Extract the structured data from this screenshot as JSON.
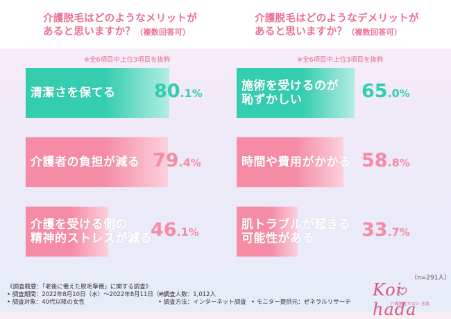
{
  "header": {
    "left_title_line1": "介護脱毛はどのようなメリットが",
    "left_title_line2": "あると思いますか？",
    "left_title_suffix": "（複数回答可）",
    "right_title_line1": "介護脱毛はどのようなデメリットが",
    "right_title_line2": "あると思いますか？",
    "right_title_suffix": "（複数回答可）"
  },
  "notes": {
    "left": "※全6項目中上位3項目を抜粋",
    "right": "※全6項目中上位3項目を抜粋"
  },
  "colors": {
    "merit": "#34cdb0",
    "merit_fade": "#b4ede2",
    "demerit": "#f58ba5",
    "demerit_fade": "#fbd1dc",
    "title": "#ea6f8f"
  },
  "chart_data": [
    {
      "type": "bar",
      "orientation": "horizontal",
      "title": "介護脱毛はどのようなメリットがあると思いますか？（複数回答可）",
      "categories": [
        "清潔さを保てる",
        "介護者の負担が減る",
        "介護を受ける側の精神的ストレスが減る"
      ],
      "values": [
        80.1,
        79.4,
        46.1
      ],
      "unit": "%",
      "series_colors": [
        "#34cdb0",
        "#f58ba5",
        "#f58ba5"
      ],
      "xlim": [
        0,
        100
      ]
    },
    {
      "type": "bar",
      "orientation": "horizontal",
      "title": "介護脱毛はどのようなデメリットがあると思いますか？（複数回答可）",
      "categories": [
        "施術を受けるのが恥ずかしい",
        "時間や費用がかかる",
        "肌トラブルが起きる可能性がある"
      ],
      "values": [
        65.0,
        58.8,
        33.7
      ],
      "unit": "%",
      "series_colors": [
        "#34cdb0",
        "#f58ba5",
        "#f58ba5"
      ],
      "xlim": [
        0,
        100
      ]
    }
  ],
  "bars": {
    "left": [
      {
        "label_lines": [
          "清潔さを保てる"
        ],
        "int": "80",
        "dec": ".1",
        "unit": "%",
        "value": 80.1,
        "color": "#34cdb0",
        "text_color": "#34cdb0"
      },
      {
        "label_lines": [
          "介護者の負担が減る"
        ],
        "int": "79",
        "dec": ".4",
        "unit": "%",
        "value": 79.4,
        "color": "#f58ba5",
        "text_color": "#f58ba5"
      },
      {
        "label_lines": [
          "介護を受ける側の",
          "精神的ストレスが減る"
        ],
        "int": "46",
        "dec": ".1",
        "unit": "%",
        "value": 46.1,
        "color": "#f58ba5",
        "text_color": "#f58ba5"
      }
    ],
    "right": [
      {
        "label_lines": [
          "施術を受けるのが",
          "恥ずかしい"
        ],
        "int": "65",
        "dec": ".0",
        "unit": "%",
        "value": 65.0,
        "color": "#34cdb0",
        "text_color": "#34cdb0"
      },
      {
        "label_lines": [
          "時間や費用がかかる"
        ],
        "int": "58",
        "dec": ".8",
        "unit": "%",
        "value": 58.8,
        "color": "#f58ba5",
        "text_color": "#f58ba5"
      },
      {
        "label_lines": [
          "肌トラブルが起きる",
          "可能性がある"
        ],
        "int": "33",
        "dec": ".7",
        "unit": "%",
        "value": 33.7,
        "color": "#f58ba5",
        "text_color": "#f58ba5"
      }
    ]
  },
  "sample": "（n=291人）",
  "footer": {
    "overview": "《調査概要：「老後に備えた脱毛準備」に関する調査》",
    "period": "• 調査期間：2022年8月10日（水）～2022年8月11日（木）",
    "target": "• 調査対象：40代以降の女性",
    "count": "• 調査人数：1,012人",
    "method": "• 調査方法：インターネット調査",
    "monitor": "• モニター提供元：ゼネラルリサーチ"
  },
  "logo": {
    "text": "Koi hada",
    "sub": "介護脱毛サロン 恋肌"
  }
}
